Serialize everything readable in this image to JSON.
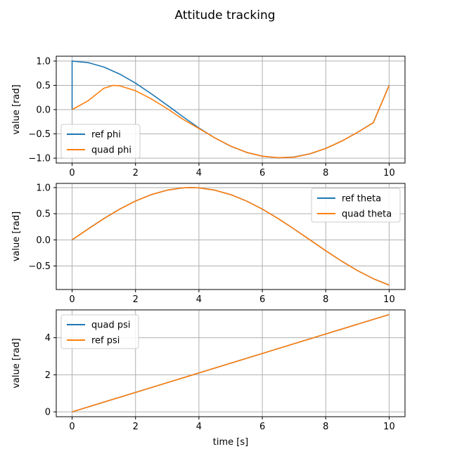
{
  "figure": {
    "title": "Attitude tracking"
  },
  "colors": {
    "blue": "#1f77b4",
    "orange": "#ff7f0e"
  },
  "chart_data": [
    {
      "type": "line",
      "xlim": [
        -0.5,
        10.5
      ],
      "ylim": [
        -1.1,
        1.1
      ],
      "xticks": [
        0,
        2,
        4,
        6,
        8,
        10
      ],
      "yticks": [
        -1.0,
        -0.5,
        0.0,
        0.5,
        1.0
      ],
      "xtick_labels": [
        "0",
        "2",
        "4",
        "6",
        "8",
        "10"
      ],
      "ytick_labels": [
        "−1.0",
        "−0.5",
        "0.0",
        "0.5",
        "1.0"
      ],
      "xlabel": "",
      "ylabel": "value [rad]",
      "grid": true,
      "legend": "lower-left",
      "series": [
        {
          "name": "ref phi",
          "color": "#1f77b4",
          "x": [
            0,
            0,
            0.5,
            1.0,
            1.5,
            2.0,
            2.5,
            3.0,
            3.5,
            4.0,
            4.5,
            5.0,
            5.5,
            6.0,
            6.5,
            7.0,
            7.5,
            8.0,
            8.5,
            9.0,
            9.5,
            10.0
          ],
          "y": [
            0,
            1.0,
            0.969,
            0.878,
            0.733,
            0.545,
            0.326,
            0.091,
            -0.148,
            -0.378,
            -0.582,
            -0.753,
            -0.88,
            -0.96,
            -0.993,
            -0.976,
            -0.911,
            -0.8,
            -0.65,
            -0.47,
            -0.266,
            0.5
          ]
        },
        {
          "name": "quad phi",
          "color": "#ff7f0e",
          "x": [
            0,
            0.5,
            1.0,
            1.3,
            1.5,
            2.0,
            2.5,
            3.0,
            3.5,
            4.0,
            4.5,
            5.0,
            5.5,
            6.0,
            6.5,
            7.0,
            7.5,
            8.0,
            8.5,
            9.0,
            9.5,
            10.0
          ],
          "y": [
            0,
            0.18,
            0.44,
            0.5,
            0.49,
            0.39,
            0.22,
            0.02,
            -0.2,
            -0.39,
            -0.58,
            -0.75,
            -0.88,
            -0.96,
            -0.99,
            -0.98,
            -0.91,
            -0.8,
            -0.65,
            -0.47,
            -0.27,
            0.5
          ]
        }
      ]
    },
    {
      "type": "line",
      "xlim": [
        -0.5,
        10.5
      ],
      "ylim": [
        -0.95,
        1.08
      ],
      "xticks": [
        0,
        2,
        4,
        6,
        8,
        10
      ],
      "yticks": [
        -0.5,
        0.0,
        0.5,
        1.0
      ],
      "xtick_labels": [
        "0",
        "2",
        "4",
        "6",
        "8",
        "10"
      ],
      "ytick_labels": [
        "−0.5",
        "0.0",
        "0.5",
        "1.0"
      ],
      "xlabel": "",
      "ylabel": "value [rad]",
      "grid": true,
      "legend": "upper-right",
      "series": [
        {
          "name": "ref theta",
          "color": "#1f77b4",
          "x": [
            0,
            0.5,
            1.0,
            1.5,
            2.0,
            2.5,
            3.0,
            3.5,
            3.75,
            4.0,
            4.5,
            5.0,
            5.5,
            6.0,
            6.5,
            7.0,
            7.5,
            8.0,
            8.5,
            9.0,
            9.5,
            10.0
          ],
          "y": [
            0,
            0.208,
            0.407,
            0.588,
            0.743,
            0.866,
            0.951,
            0.995,
            1.0,
            0.995,
            0.951,
            0.866,
            0.743,
            0.588,
            0.407,
            0.208,
            0.0,
            -0.208,
            -0.407,
            -0.588,
            -0.743,
            -0.866
          ]
        },
        {
          "name": "quad theta",
          "color": "#ff7f0e",
          "x": [
            0,
            0.5,
            1.0,
            1.5,
            2.0,
            2.5,
            3.0,
            3.5,
            3.75,
            4.0,
            4.5,
            5.0,
            5.5,
            6.0,
            6.5,
            7.0,
            7.5,
            8.0,
            8.5,
            9.0,
            9.5,
            10.0
          ],
          "y": [
            0,
            0.205,
            0.405,
            0.587,
            0.742,
            0.866,
            0.951,
            0.995,
            1.0,
            0.995,
            0.951,
            0.866,
            0.743,
            0.588,
            0.407,
            0.208,
            0.0,
            -0.208,
            -0.407,
            -0.588,
            -0.743,
            -0.866
          ]
        }
      ]
    },
    {
      "type": "line",
      "xlim": [
        -0.5,
        10.5
      ],
      "ylim": [
        -0.26,
        5.5
      ],
      "xticks": [
        0,
        2,
        4,
        6,
        8,
        10
      ],
      "yticks": [
        0,
        2,
        4
      ],
      "xtick_labels": [
        "0",
        "2",
        "4",
        "6",
        "8",
        "10"
      ],
      "ytick_labels": [
        "0",
        "2",
        "4"
      ],
      "xlabel": "time [s]",
      "ylabel": "value [rad]",
      "grid": true,
      "legend": "upper-left",
      "series": [
        {
          "name": "quad psi",
          "color": "#1f77b4",
          "x": [
            0,
            10
          ],
          "y": [
            0,
            5.25
          ]
        },
        {
          "name": "ref psi",
          "color": "#ff7f0e",
          "x": [
            0,
            10
          ],
          "y": [
            0,
            5.25
          ]
        }
      ]
    }
  ]
}
